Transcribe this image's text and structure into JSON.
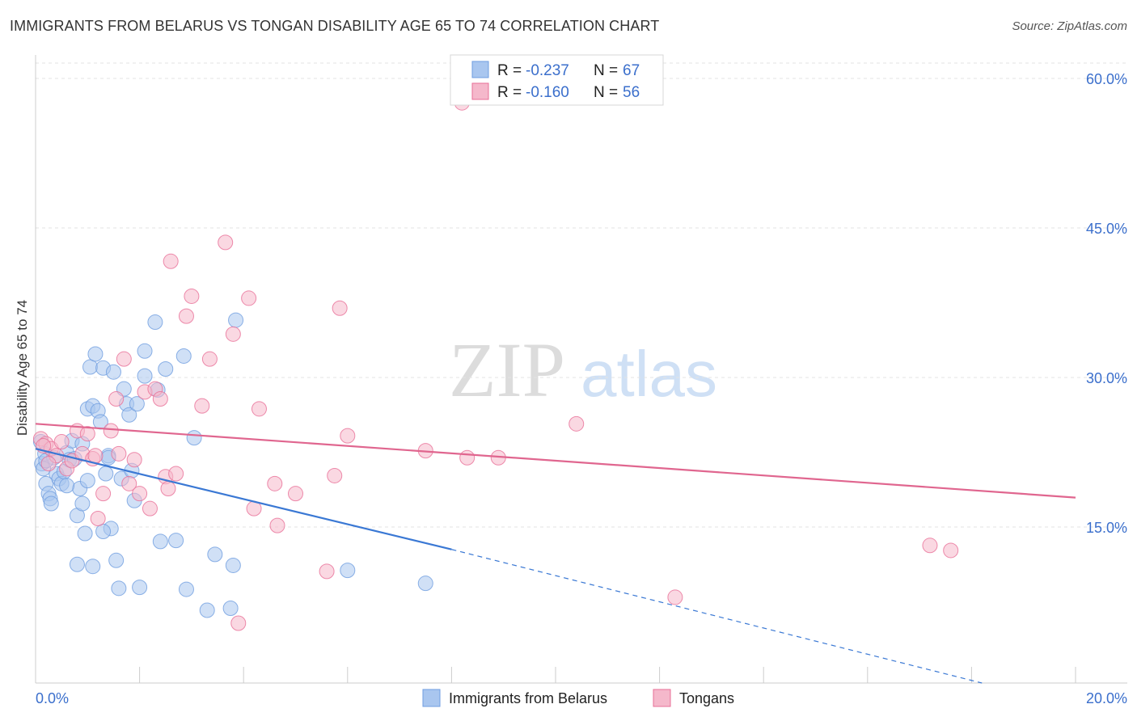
{
  "header": {
    "title": "IMMIGRANTS FROM BELARUS VS TONGAN DISABILITY AGE 65 TO 74 CORRELATION CHART",
    "source": "Source: ZipAtlas.com"
  },
  "watermark": {
    "zip": "ZIP",
    "atlas": "atlas"
  },
  "legend": {
    "entries": [
      {
        "r_label": "R =",
        "r_value": "-0.237",
        "n_label": "N =",
        "n_value": "67",
        "color": "#a9c6ef"
      },
      {
        "r_label": "R =",
        "r_value": "-0.160",
        "n_label": "N =",
        "n_value": "56",
        "color": "#f5b8cb"
      }
    ]
  },
  "chart_data": {
    "type": "scatter",
    "title": "IMMIGRANTS FROM BELARUS VS TONGAN DISABILITY AGE 65 TO 74 CORRELATION CHART",
    "xlabel": "",
    "ylabel": "Disability Age 65 to 74",
    "xlim": [
      0,
      20
    ],
    "ylim": [
      0,
      60
    ],
    "x_ticks": [
      "0.0%",
      "20.0%"
    ],
    "y_ticks": [
      {
        "value": 15,
        "label": "15.0%"
      },
      {
        "value": 30,
        "label": "30.0%"
      },
      {
        "value": 45,
        "label": "45.0%"
      },
      {
        "value": 60,
        "label": "60.0%"
      }
    ],
    "grid": "horizontal dashed",
    "legend_position": "bottom-center",
    "series": [
      {
        "name": "Immigrants from Belarus",
        "color": "#6f9de0",
        "fill": "#a9c6ef",
        "trend": {
          "x0": 0.0,
          "y0": 23.5,
          "x1": 8.0,
          "y1": 13.4,
          "dashed_to_x": 18.2,
          "dashed_to_y": 0.0
        },
        "points": [
          [
            0.1,
            24.2
          ],
          [
            0.12,
            22.0
          ],
          [
            0.15,
            21.5
          ],
          [
            0.18,
            23.0
          ],
          [
            0.2,
            20.0
          ],
          [
            0.25,
            19.0
          ],
          [
            0.28,
            18.5
          ],
          [
            0.3,
            18.0
          ],
          [
            0.35,
            22.6
          ],
          [
            0.4,
            21.0
          ],
          [
            0.45,
            20.5
          ],
          [
            0.5,
            20.0
          ],
          [
            0.55,
            21.2
          ],
          [
            0.6,
            23.1
          ],
          [
            0.65,
            22.4
          ],
          [
            0.7,
            24.3
          ],
          [
            0.75,
            22.5
          ],
          [
            0.8,
            16.8
          ],
          [
            0.85,
            19.5
          ],
          [
            0.9,
            18.0
          ],
          [
            0.95,
            15.0
          ],
          [
            1.0,
            27.5
          ],
          [
            1.05,
            31.7
          ],
          [
            1.1,
            27.8
          ],
          [
            1.15,
            33.0
          ],
          [
            1.2,
            27.3
          ],
          [
            1.25,
            26.2
          ],
          [
            1.3,
            31.6
          ],
          [
            1.35,
            21.0
          ],
          [
            1.4,
            22.8
          ],
          [
            1.45,
            15.5
          ],
          [
            1.5,
            31.2
          ],
          [
            1.55,
            12.3
          ],
          [
            1.6,
            9.5
          ],
          [
            1.65,
            20.5
          ],
          [
            1.7,
            29.5
          ],
          [
            1.75,
            28.0
          ],
          [
            1.8,
            26.9
          ],
          [
            1.85,
            21.3
          ],
          [
            1.9,
            18.3
          ],
          [
            1.95,
            28.0
          ],
          [
            2.0,
            9.6
          ],
          [
            2.1,
            33.3
          ],
          [
            2.1,
            30.8
          ],
          [
            2.3,
            36.2
          ],
          [
            2.35,
            29.4
          ],
          [
            2.4,
            14.2
          ],
          [
            2.5,
            31.5
          ],
          [
            2.7,
            14.3
          ],
          [
            2.85,
            32.8
          ],
          [
            2.9,
            9.4
          ],
          [
            3.05,
            24.6
          ],
          [
            3.3,
            7.3
          ],
          [
            3.45,
            12.9
          ],
          [
            3.75,
            7.5
          ],
          [
            3.8,
            11.8
          ],
          [
            3.85,
            36.4
          ],
          [
            6.0,
            11.3
          ],
          [
            7.5,
            10.0
          ],
          [
            0.8,
            11.9
          ],
          [
            1.1,
            11.7
          ],
          [
            1.4,
            22.6
          ],
          [
            1.0,
            20.3
          ],
          [
            0.6,
            19.8
          ],
          [
            1.3,
            15.2
          ],
          [
            0.9,
            24.0
          ],
          [
            0.2,
            22.3
          ]
        ]
      },
      {
        "name": "Tongans",
        "color": "#e86f97",
        "fill": "#f5b8cb",
        "trend": {
          "x0": 0.0,
          "y0": 26.0,
          "x1": 20.0,
          "y1": 18.6
        },
        "points": [
          [
            0.1,
            24.5
          ],
          [
            0.2,
            24.0
          ],
          [
            0.3,
            23.5
          ],
          [
            0.4,
            22.8
          ],
          [
            0.5,
            24.2
          ],
          [
            0.6,
            21.5
          ],
          [
            0.7,
            22.3
          ],
          [
            0.8,
            25.3
          ],
          [
            0.9,
            23.0
          ],
          [
            1.0,
            25.0
          ],
          [
            1.1,
            22.5
          ],
          [
            1.15,
            22.8
          ],
          [
            1.2,
            16.5
          ],
          [
            1.3,
            19.0
          ],
          [
            1.45,
            25.3
          ],
          [
            1.55,
            28.5
          ],
          [
            1.6,
            23.0
          ],
          [
            1.7,
            32.5
          ],
          [
            1.8,
            20.0
          ],
          [
            1.9,
            22.4
          ],
          [
            2.0,
            19.0
          ],
          [
            2.1,
            29.2
          ],
          [
            2.2,
            17.5
          ],
          [
            2.3,
            29.5
          ],
          [
            2.4,
            28.5
          ],
          [
            2.5,
            20.7
          ],
          [
            2.55,
            19.5
          ],
          [
            2.6,
            42.3
          ],
          [
            2.7,
            21.0
          ],
          [
            2.9,
            36.8
          ],
          [
            3.0,
            38.8
          ],
          [
            3.2,
            27.8
          ],
          [
            3.35,
            32.5
          ],
          [
            3.65,
            44.2
          ],
          [
            3.8,
            35.0
          ],
          [
            3.9,
            6.0
          ],
          [
            4.1,
            38.6
          ],
          [
            4.2,
            17.5
          ],
          [
            4.3,
            27.5
          ],
          [
            4.6,
            20.0
          ],
          [
            4.65,
            15.8
          ],
          [
            5.0,
            19.0
          ],
          [
            5.6,
            11.2
          ],
          [
            5.75,
            20.8
          ],
          [
            5.85,
            37.6
          ],
          [
            6.0,
            24.8
          ],
          [
            7.5,
            23.3
          ],
          [
            8.2,
            58.2
          ],
          [
            8.3,
            22.6
          ],
          [
            8.9,
            22.6
          ],
          [
            10.4,
            26.0
          ],
          [
            12.3,
            8.6
          ],
          [
            17.2,
            13.8
          ],
          [
            17.6,
            13.3
          ],
          [
            0.15,
            23.8
          ],
          [
            0.25,
            22.0
          ]
        ]
      }
    ]
  }
}
